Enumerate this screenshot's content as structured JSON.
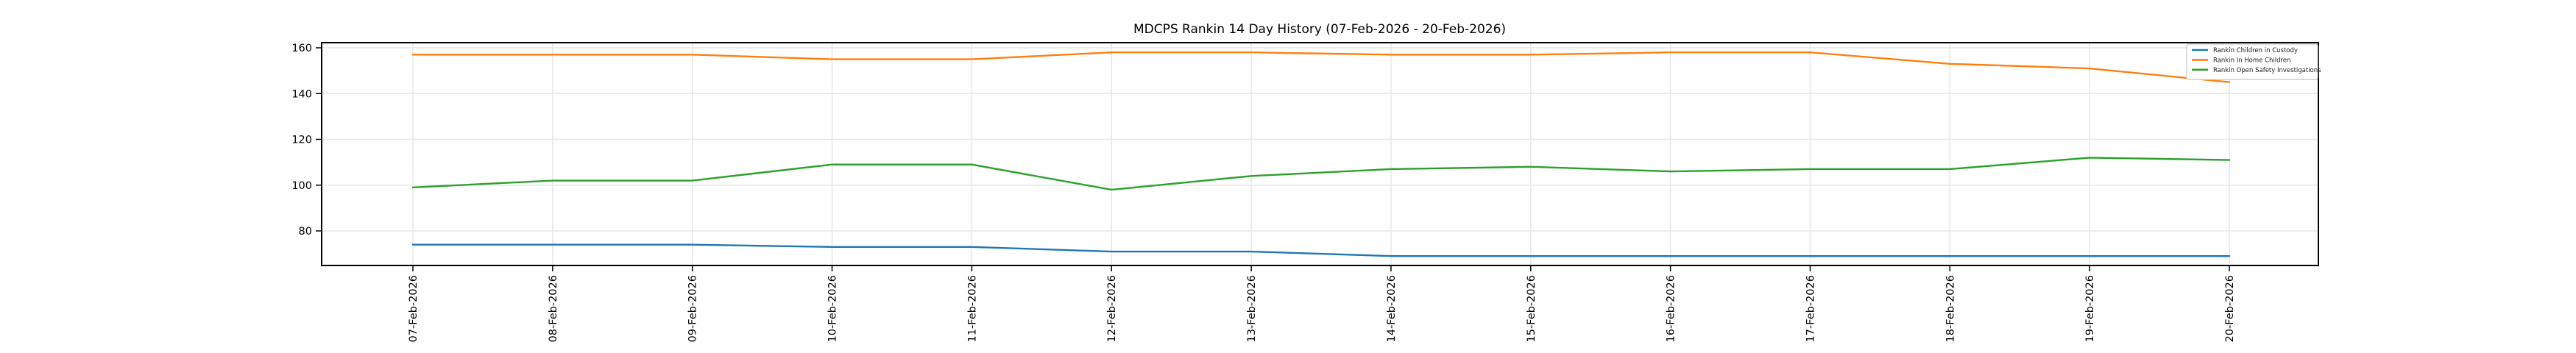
{
  "chart_data": {
    "type": "line",
    "title": "MDCPS Rankin 14 Day History (07-Feb-2026 - 20-Feb-2026)",
    "xlabel": "",
    "ylabel": "",
    "grid": true,
    "legend_position": "top-right",
    "ylim": [
      64.9,
      162.3
    ],
    "yticks": [
      80,
      100,
      120,
      140,
      160
    ],
    "categories": [
      "07-Feb-2026",
      "08-Feb-2026",
      "09-Feb-2026",
      "10-Feb-2026",
      "11-Feb-2026",
      "12-Feb-2026",
      "13-Feb-2026",
      "14-Feb-2026",
      "15-Feb-2026",
      "16-Feb-2026",
      "17-Feb-2026",
      "18-Feb-2026",
      "19-Feb-2026",
      "20-Feb-2026"
    ],
    "series": [
      {
        "name": "Rankin Children in Custody",
        "color": "#1f77b4",
        "values": [
          74,
          74,
          74,
          73,
          73,
          71,
          71,
          69,
          69,
          69,
          69,
          69,
          69,
          69
        ]
      },
      {
        "name": "Rankin In Home Children",
        "color": "#ff7f0e",
        "values": [
          157,
          157,
          157,
          155,
          155,
          158,
          158,
          157,
          157,
          158,
          158,
          153,
          151,
          145
        ]
      },
      {
        "name": "Rankin Open Safety Investigations",
        "color": "#2ca02c",
        "values": [
          99,
          102,
          102,
          109,
          109,
          98,
          104,
          107,
          108,
          106,
          107,
          107,
          112,
          111
        ]
      }
    ],
    "colors": {
      "gridline": "#e7e7e7",
      "spine": "#000000",
      "legend_border": "#cccccc"
    }
  }
}
